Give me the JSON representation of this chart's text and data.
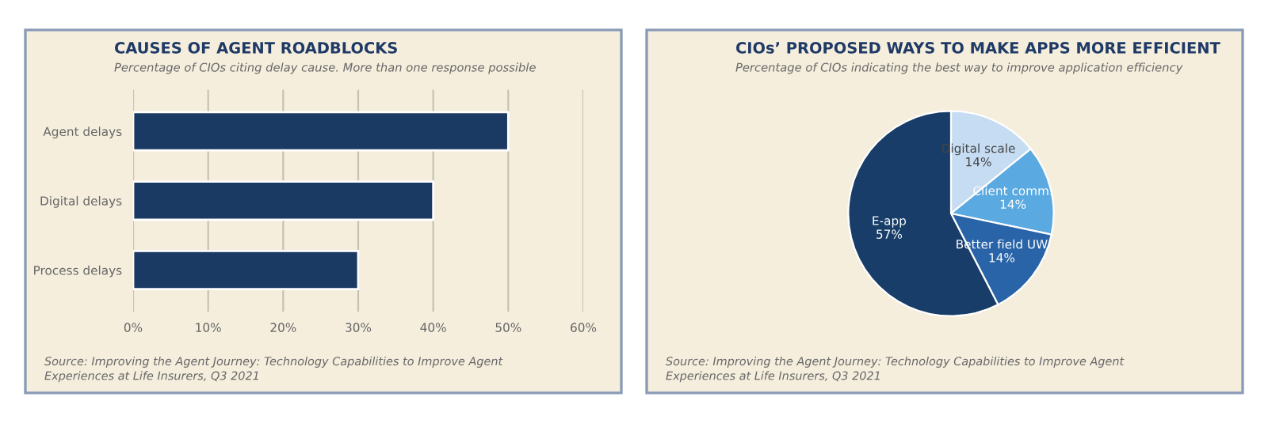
{
  "chart_data": [
    {
      "type": "bar",
      "orientation": "horizontal",
      "title": "CAUSES OF AGENT ROADBLOCKS",
      "subtitle": "Percentage of CIOs citing delay cause. More than one response possible",
      "categories": [
        "Agent delays",
        "Digital delays",
        "Process delays"
      ],
      "values": [
        50,
        40,
        30
      ],
      "color": "#1b3a63",
      "xlim": [
        0,
        60
      ],
      "xticks": [
        {
          "value": 0,
          "label": "0%"
        },
        {
          "value": 10,
          "label": "10%"
        },
        {
          "value": 20,
          "label": "20%"
        },
        {
          "value": 30,
          "label": "30%"
        },
        {
          "value": 40,
          "label": "40%"
        },
        {
          "value": 50,
          "label": "50%"
        },
        {
          "value": 60,
          "label": "60%"
        }
      ],
      "grid": "x",
      "legend": false,
      "annotations": [
        "Source: Improving the Agent Journey: Technology Capabilities to Improve Agent\nExperiences at Life Insurers, Q3 2021"
      ]
    },
    {
      "type": "pie",
      "title": "CIOs’ PROPOSED WAYS TO MAKE APPS MORE EFFICIENT",
      "subtitle": "Percentage of CIOs indicating the best way to improve application efficiency",
      "categories": [
        "Digital scale",
        "Client comm.",
        "Better field UW",
        "E-app"
      ],
      "values": [
        14,
        14,
        14,
        57
      ],
      "colors": [
        "#c5dcf2",
        "#5aa9e0",
        "#2a64a8",
        "#173d68"
      ],
      "value_labels": [
        "14%",
        "14%",
        "14%",
        "57%"
      ],
      "legend": false,
      "annotations": [
        "Source: Improving the Agent Journey: Technology Capabilities to Improve Agent\nExperiences at Life Insurers, Q3 2021"
      ]
    }
  ]
}
